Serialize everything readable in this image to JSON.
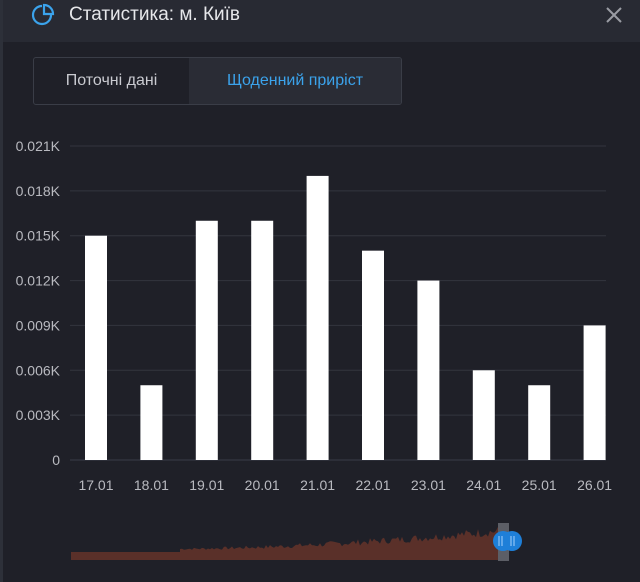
{
  "header": {
    "title": "Статистика: м. Київ",
    "icon": "pie-chart-icon",
    "close_icon": "close-icon"
  },
  "tabs": [
    {
      "label": "Поточні дані",
      "active": false
    },
    {
      "label": "Щоденний приріст",
      "active": true
    }
  ],
  "colors": {
    "accent": "#3ba3ec",
    "bar": "#ffffff",
    "navigator": "#5a3029",
    "handle": "#1e7fd8"
  },
  "chart_data": {
    "type": "bar",
    "categories": [
      "17.01",
      "18.01",
      "19.01",
      "20.01",
      "21.01",
      "22.01",
      "23.01",
      "24.01",
      "25.01",
      "26.01"
    ],
    "values": [
      15,
      5,
      16,
      16,
      19,
      14,
      12,
      6,
      5,
      9
    ],
    "ylim": [
      0,
      21
    ],
    "yticks": [
      0,
      3,
      6,
      9,
      12,
      15,
      18,
      21
    ],
    "ytick_labels": [
      "0",
      "0.003K",
      "0.006K",
      "0.009K",
      "0.012K",
      "0.015K",
      "0.018K",
      "0.021K"
    ],
    "grid": true,
    "xlabel": "",
    "ylabel": ""
  }
}
